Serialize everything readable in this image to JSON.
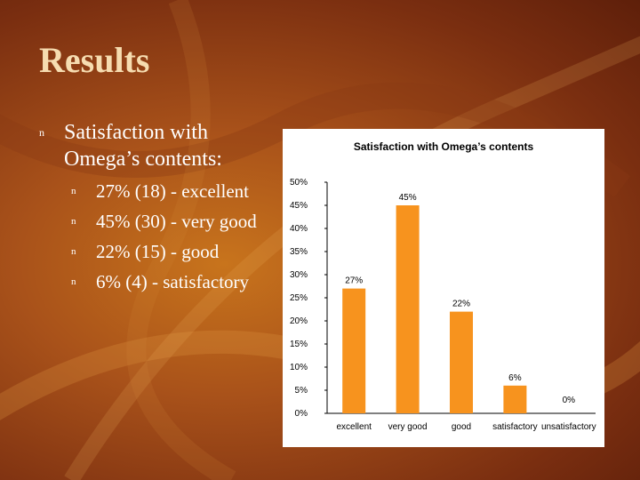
{
  "slide": {
    "title": "Results",
    "bullet_marker": "n",
    "main_bullet": "Satisfaction with Omega’s contents:",
    "sub_bullets": [
      "27% (18) - excellent",
      "45% (30) - very good",
      "22% (15) - good",
      "6% (4) - satisfactory"
    ]
  },
  "colors": {
    "bar": "#f7931e",
    "title_text": "#f6dcb0",
    "body_text": "#ffffff"
  },
  "chart_data": {
    "type": "bar",
    "title": "Satisfaction with Omega’s contents",
    "categories": [
      "excellent",
      "very good",
      "good",
      "satisfactory",
      "unsatisfactory"
    ],
    "values": [
      27,
      45,
      22,
      6,
      0
    ],
    "data_labels": [
      "27%",
      "45%",
      "22%",
      "6%",
      "0%"
    ],
    "ylim": [
      0,
      50
    ],
    "yticks": [
      "0%",
      "5%",
      "10%",
      "15%",
      "20%",
      "25%",
      "30%",
      "35%",
      "40%",
      "45%",
      "50%"
    ],
    "xlabel": "",
    "ylabel": "",
    "grid": false,
    "legend": "none"
  }
}
